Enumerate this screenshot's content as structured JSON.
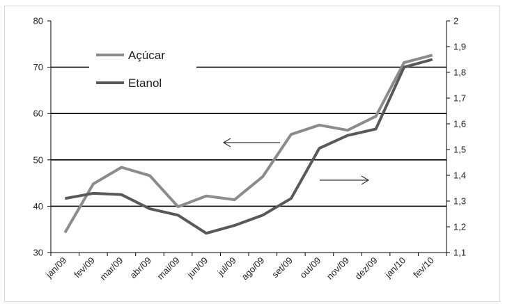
{
  "chart_data": {
    "type": "line",
    "categories": [
      "jan/09",
      "fev/09",
      "mar/09",
      "abr/09",
      "mai/09",
      "jun/09",
      "jul/09",
      "ago/09",
      "set/09",
      "out/09",
      "nov/09",
      "dez/09",
      "jan/10",
      "fev/10"
    ],
    "series": [
      {
        "name": "Açúcar",
        "axis": "left",
        "color": "#8c8c8c",
        "values": [
          34.3,
          44.8,
          48.4,
          46.6,
          39.9,
          42.2,
          41.4,
          46.4,
          55.5,
          57.5,
          56.4,
          59.4,
          71.0,
          72.6
        ]
      },
      {
        "name": "Etanol",
        "axis": "right",
        "color": "#595959",
        "values": [
          1.31,
          1.33,
          1.325,
          1.27,
          1.245,
          1.175,
          1.205,
          1.245,
          1.31,
          1.505,
          1.555,
          1.58,
          1.82,
          1.85
        ]
      }
    ],
    "left_axis": {
      "ylim": [
        30,
        80
      ],
      "ticks": [
        "30",
        "40",
        "50",
        "60",
        "70",
        "80"
      ]
    },
    "right_axis": {
      "ylim": [
        1.1,
        2.0
      ],
      "ticks": [
        "1,1",
        "1,2",
        "1,3",
        "1,4",
        "1,5",
        "1,6",
        "1,7",
        "1,8",
        "1,9",
        "2"
      ]
    },
    "gridlines": [
      40,
      50,
      60,
      70
    ],
    "legend": {
      "placement": "top-left",
      "entries": [
        "Açúcar",
        "Etanol"
      ]
    },
    "annotations": [
      {
        "kind": "arrow",
        "direction": "left",
        "meaning": "Açúcar uses left axis"
      },
      {
        "kind": "arrow",
        "direction": "right",
        "meaning": "Etanol uses right axis"
      }
    ]
  }
}
